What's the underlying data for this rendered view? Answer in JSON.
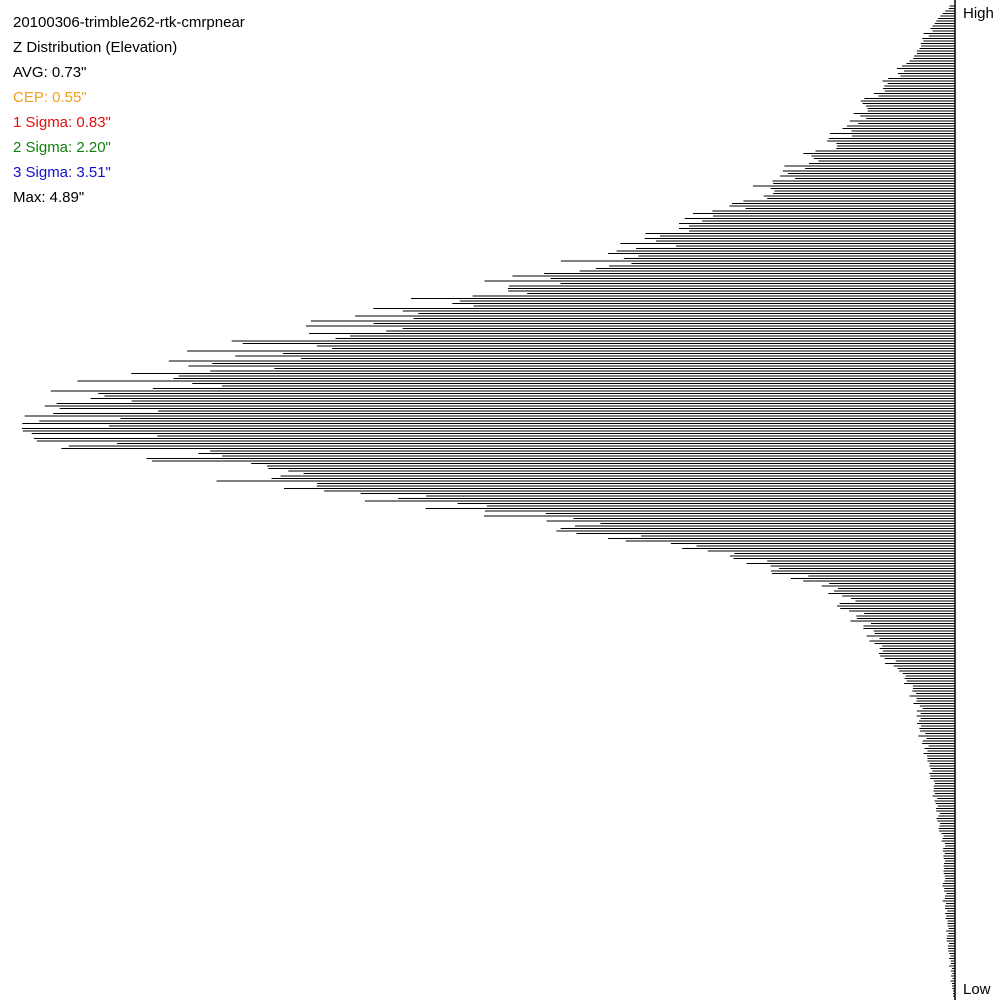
{
  "header": {
    "title": "20100306-trimble262-rtk-cmrpnear",
    "subtitle": "Z Distribution (Elevation)"
  },
  "stats": [
    {
      "label": "AVG: 0.73\"",
      "color": "#000000"
    },
    {
      "label": "CEP: 0.55\"",
      "color": "#f0a020"
    },
    {
      "label": "1 Sigma: 0.83\"",
      "color": "#e01010"
    },
    {
      "label": "2 Sigma: 2.20\"",
      "color": "#108010"
    },
    {
      "label": "3 Sigma: 3.51\"",
      "color": "#1010d0"
    },
    {
      "label": "Max: 4.89\"",
      "color": "#000000"
    }
  ],
  "axis": {
    "high_label": "High",
    "low_label": "Low"
  },
  "chart_data": {
    "type": "bar",
    "orientation": "horizontal",
    "title": "Z Distribution (Elevation)",
    "xlabel": "",
    "ylabel": "",
    "y_ends": [
      "High",
      "Low"
    ],
    "bars_grow": "leftward from right baseline",
    "peak_bin_fraction": 0.42,
    "relative_frequency_profile": [
      [
        0.0,
        0.0
      ],
      [
        0.02,
        0.02
      ],
      [
        0.05,
        0.04
      ],
      [
        0.08,
        0.07
      ],
      [
        0.11,
        0.1
      ],
      [
        0.14,
        0.13
      ],
      [
        0.17,
        0.18
      ],
      [
        0.2,
        0.23
      ],
      [
        0.23,
        0.29
      ],
      [
        0.26,
        0.38
      ],
      [
        0.29,
        0.5
      ],
      [
        0.32,
        0.63
      ],
      [
        0.35,
        0.74
      ],
      [
        0.38,
        0.86
      ],
      [
        0.4,
        0.94
      ],
      [
        0.42,
        1.0
      ],
      [
        0.44,
        0.96
      ],
      [
        0.46,
        0.86
      ],
      [
        0.48,
        0.73
      ],
      [
        0.5,
        0.6
      ],
      [
        0.52,
        0.45
      ],
      [
        0.54,
        0.33
      ],
      [
        0.56,
        0.23
      ],
      [
        0.58,
        0.16
      ],
      [
        0.6,
        0.12
      ],
      [
        0.63,
        0.09
      ],
      [
        0.66,
        0.07
      ],
      [
        0.7,
        0.04
      ],
      [
        0.75,
        0.03
      ],
      [
        0.8,
        0.02
      ],
      [
        0.85,
        0.01
      ],
      [
        0.9,
        0.01
      ],
      [
        1.0,
        0.0
      ]
    ],
    "grid": false,
    "colors": {
      "bars": "#000000",
      "baseline": "#000000",
      "background": "#ffffff"
    }
  }
}
